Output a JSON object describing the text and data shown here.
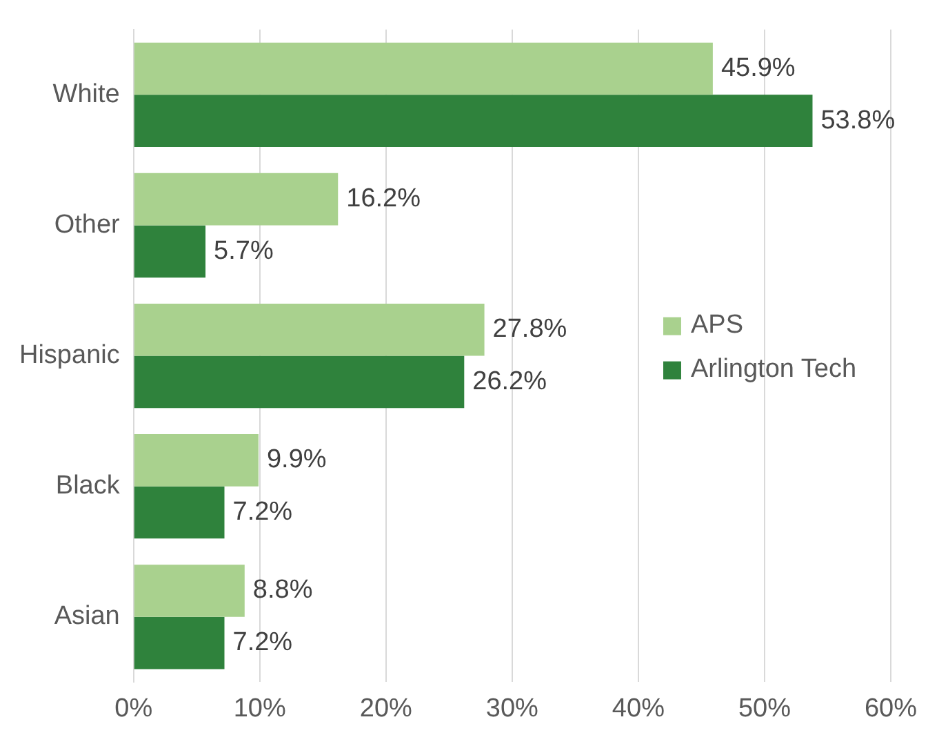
{
  "chart_data": {
    "type": "bar",
    "orientation": "horizontal",
    "categories": [
      "White",
      "Other",
      "Hispanic",
      "Black",
      "Asian"
    ],
    "series": [
      {
        "name": "APS",
        "color": "#a9d18e",
        "values": [
          45.9,
          16.2,
          27.8,
          9.9,
          8.8
        ],
        "value_labels": [
          "45.9%",
          "16.2%",
          "27.8%",
          "9.9%",
          "8.8%"
        ]
      },
      {
        "name": "Arlington Tech",
        "color": "#2f823c",
        "values": [
          53.8,
          5.7,
          26.2,
          7.2,
          7.2
        ],
        "value_labels": [
          "53.8%",
          "5.7%",
          "26.2%",
          "7.2%",
          "7.2%"
        ]
      }
    ],
    "xlim": [
      0,
      60
    ],
    "xticks": [
      {
        "value": 0,
        "label": "0%"
      },
      {
        "value": 10,
        "label": "10%"
      },
      {
        "value": 20,
        "label": "20%"
      },
      {
        "value": 30,
        "label": "30%"
      },
      {
        "value": 40,
        "label": "40%"
      },
      {
        "value": 50,
        "label": "50%"
      },
      {
        "value": 60,
        "label": "60%"
      }
    ],
    "grid": "x",
    "legend": "right"
  }
}
